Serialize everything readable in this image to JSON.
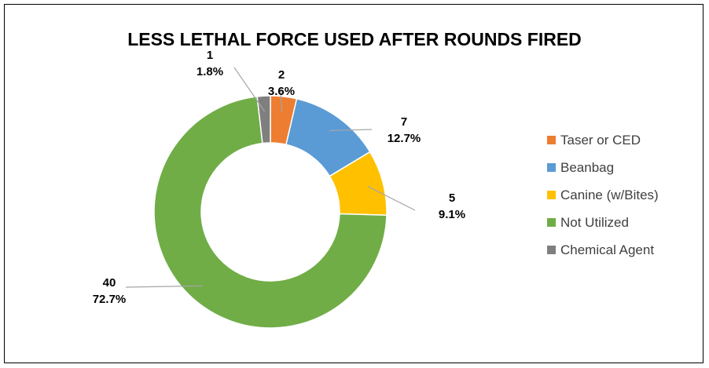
{
  "chart_data": {
    "type": "pie",
    "variant": "doughnut",
    "title": "LESS LETHAL FORCE USED AFTER ROUNDS FIRED",
    "legend_position": "right",
    "series": [
      {
        "name": "Taser or CED",
        "value": 2,
        "percent": "3.6%",
        "color": "#ED7D31"
      },
      {
        "name": "Beanbag",
        "value": 7,
        "percent": "12.7%",
        "color": "#5B9BD5"
      },
      {
        "name": "Canine (w/Bites)",
        "value": 5,
        "percent": "9.1%",
        "color": "#FFC000"
      },
      {
        "name": "Not Utilized",
        "value": 40,
        "percent": "72.7%",
        "color": "#70AD47"
      },
      {
        "name": "Chemical Agent",
        "value": 1,
        "percent": "1.8%",
        "color": "#7F7F7F"
      }
    ]
  }
}
